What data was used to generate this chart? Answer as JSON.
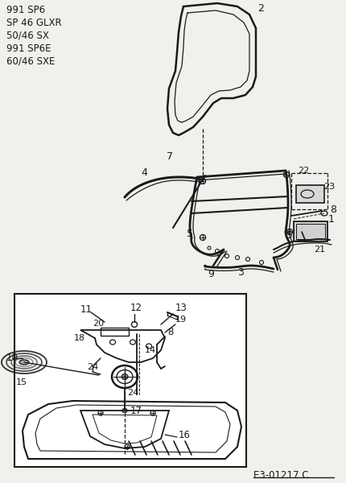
{
  "bg_color": "#f0f0ec",
  "line_color": "#1a1a1a",
  "text_color": "#1a1a1a",
  "title_lines": [
    "991 SP6",
    "SP 46 GLXR",
    "50/46 SX",
    "991 SP6E",
    "60/46 SXE"
  ],
  "reference_code": "E3-01217 C",
  "fig_width": 4.31,
  "fig_height": 6.0,
  "dpi": 100
}
